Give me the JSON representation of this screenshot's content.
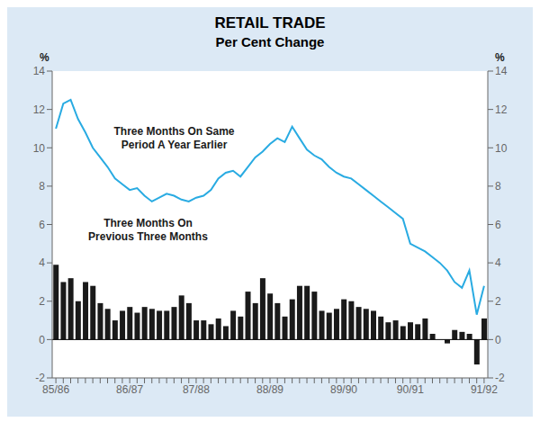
{
  "chart_data": {
    "type": "bar",
    "title": "RETAIL TRADE",
    "subtitle": "Per Cent Change",
    "ylabel": "%",
    "y2label": "%",
    "categories": [
      "85/86",
      null,
      null,
      null,
      null,
      null,
      null,
      null,
      null,
      null,
      "86/87",
      null,
      null,
      null,
      null,
      null,
      null,
      null,
      null,
      "87/88",
      null,
      null,
      null,
      null,
      null,
      null,
      null,
      null,
      null,
      "88/89",
      null,
      null,
      null,
      null,
      null,
      null,
      null,
      null,
      null,
      "89/90",
      null,
      null,
      null,
      null,
      null,
      null,
      null,
      null,
      "90/91",
      null,
      null,
      null,
      null,
      null,
      null,
      null,
      null,
      null,
      "91/92"
    ],
    "series": [
      {
        "type": "bar",
        "color": "#1a1a1a",
        "values": [
          3.9,
          3.0,
          3.2,
          2.0,
          3.0,
          2.8,
          1.9,
          1.6,
          1.0,
          1.5,
          1.7,
          1.4,
          1.7,
          1.6,
          1.5,
          1.5,
          1.7,
          2.3,
          1.9,
          1.0,
          1.0,
          0.8,
          1.1,
          0.7,
          1.5,
          1.2,
          2.5,
          1.9,
          3.2,
          2.4,
          1.9,
          1.2,
          2.1,
          2.8,
          2.8,
          2.5,
          1.5,
          1.4,
          1.6,
          2.1,
          2.0,
          1.7,
          1.6,
          1.5,
          1.2,
          0.9,
          1.0,
          0.7,
          0.9,
          0.8,
          1.1,
          0.3,
          0.0,
          -0.2,
          0.5,
          0.4,
          0.3,
          -1.3,
          1.1
        ]
      },
      {
        "type": "line",
        "color": "#29abe2",
        "values": [
          11.0,
          12.3,
          12.5,
          11.5,
          10.8,
          10.0,
          9.5,
          9.0,
          8.4,
          8.1,
          7.8,
          7.9,
          7.5,
          7.2,
          7.4,
          7.6,
          7.5,
          7.3,
          7.2,
          7.4,
          7.5,
          7.8,
          8.4,
          8.7,
          8.8,
          8.5,
          9.0,
          9.5,
          9.8,
          10.2,
          10.5,
          10.3,
          11.1,
          10.5,
          9.9,
          9.6,
          9.4,
          9.0,
          8.7,
          8.5,
          8.4,
          8.1,
          7.8,
          7.5,
          7.2,
          6.9,
          6.6,
          6.3,
          5.0,
          4.8,
          4.6,
          4.3,
          4.0,
          3.6,
          3.0,
          2.7,
          3.6,
          1.3,
          2.8
        ]
      }
    ],
    "annotations": [
      "Three Months On Same\nPeriod A Year Earlier",
      "Three Months On\nPrevious Three Months"
    ],
    "ylim": [
      -2,
      14
    ],
    "yticks": [
      -2,
      0,
      2,
      4,
      6,
      8,
      10,
      12,
      14
    ],
    "y2lim": [
      -2,
      14
    ],
    "y2ticks": [
      -2,
      0,
      2,
      4,
      6,
      8,
      10,
      12,
      14
    ],
    "grid": false
  }
}
